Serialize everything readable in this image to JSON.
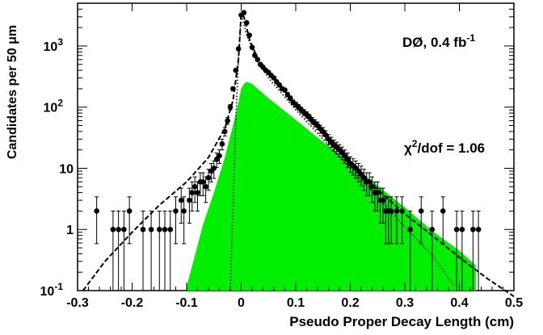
{
  "chart_data": {
    "type": "scatter",
    "xlabel": "Pseudo Proper Decay Length  (cm)",
    "ylabel": "Candidates per 50 μm",
    "xlim": [
      -0.3,
      0.5
    ],
    "ylim": [
      0.1,
      5000
    ],
    "yscale": "log",
    "x_ticks": [
      {
        "v": -0.3,
        "label": "-0.3"
      },
      {
        "v": -0.2,
        "label": "-0.2"
      },
      {
        "v": -0.1,
        "label": "-0.1"
      },
      {
        "v": 0.0,
        "label": "0"
      },
      {
        "v": 0.1,
        "label": "0.1"
      },
      {
        "v": 0.2,
        "label": "0.2"
      },
      {
        "v": 0.3,
        "label": "0.3"
      },
      {
        "v": 0.4,
        "label": "0.4"
      },
      {
        "v": 0.5,
        "label": "0.5"
      }
    ],
    "y_ticks": [
      {
        "v": 0.1,
        "base": "10",
        "exp": "-1"
      },
      {
        "v": 1,
        "base": "1",
        "exp": ""
      },
      {
        "v": 10,
        "base": "10",
        "exp": ""
      },
      {
        "v": 100,
        "base": "10",
        "exp": "2"
      },
      {
        "v": 1000,
        "base": "10",
        "exp": "3"
      }
    ],
    "annotations": {
      "experiment": {
        "text": "DØ,  0.4 fb",
        "sup": "-1"
      },
      "chi2": {
        "pre": "χ",
        "sup": "2",
        "post": "/dof = 1.06"
      }
    },
    "colors": {
      "signal_fill": "#00ee00",
      "data": "#000000"
    },
    "series": [
      {
        "style": "points-with-error-bars",
        "points": [
          [
            -0.265,
            2
          ],
          [
            -0.235,
            1
          ],
          [
            -0.225,
            1
          ],
          [
            -0.215,
            1
          ],
          [
            -0.205,
            2
          ],
          [
            -0.18,
            1
          ],
          [
            -0.165,
            1
          ],
          [
            -0.15,
            1
          ],
          [
            -0.14,
            1
          ],
          [
            -0.13,
            1
          ],
          [
            -0.12,
            2
          ],
          [
            -0.11,
            3
          ],
          [
            -0.105,
            2
          ],
          [
            -0.095,
            3
          ],
          [
            -0.09,
            4
          ],
          [
            -0.085,
            5
          ],
          [
            -0.08,
            4
          ],
          [
            -0.075,
            6
          ],
          [
            -0.07,
            6
          ],
          [
            -0.065,
            5
          ],
          [
            -0.06,
            7
          ],
          [
            -0.055,
            9
          ],
          [
            -0.05,
            10
          ],
          [
            -0.045,
            14
          ],
          [
            -0.04,
            16
          ],
          [
            -0.035,
            25
          ],
          [
            -0.03,
            40
          ],
          [
            -0.025,
            60
          ],
          [
            -0.02,
            100
          ],
          [
            -0.015,
            200
          ],
          [
            -0.01,
            400
          ],
          [
            -0.005,
            900
          ],
          [
            0.0,
            3200
          ],
          [
            0.005,
            3500
          ],
          [
            0.01,
            2400
          ],
          [
            0.015,
            1500
          ],
          [
            0.02,
            950
          ],
          [
            0.025,
            700
          ],
          [
            0.03,
            600
          ],
          [
            0.035,
            500
          ],
          [
            0.04,
            450
          ],
          [
            0.045,
            400
          ],
          [
            0.05,
            370
          ],
          [
            0.055,
            330
          ],
          [
            0.06,
            300
          ],
          [
            0.065,
            260
          ],
          [
            0.07,
            230
          ],
          [
            0.075,
            200
          ],
          [
            0.08,
            190
          ],
          [
            0.085,
            160
          ],
          [
            0.09,
            140
          ],
          [
            0.095,
            120
          ],
          [
            0.1,
            110
          ],
          [
            0.105,
            100
          ],
          [
            0.11,
            90
          ],
          [
            0.115,
            82
          ],
          [
            0.12,
            75
          ],
          [
            0.125,
            68
          ],
          [
            0.13,
            60
          ],
          [
            0.135,
            55
          ],
          [
            0.14,
            50
          ],
          [
            0.145,
            44
          ],
          [
            0.15,
            40
          ],
          [
            0.155,
            35
          ],
          [
            0.16,
            30
          ],
          [
            0.165,
            27
          ],
          [
            0.17,
            24
          ],
          [
            0.175,
            22
          ],
          [
            0.18,
            20
          ],
          [
            0.185,
            18
          ],
          [
            0.19,
            16
          ],
          [
            0.195,
            14
          ],
          [
            0.2,
            12
          ],
          [
            0.205,
            11
          ],
          [
            0.21,
            10
          ],
          [
            0.215,
            9
          ],
          [
            0.22,
            8
          ],
          [
            0.225,
            7
          ],
          [
            0.23,
            6
          ],
          [
            0.235,
            6
          ],
          [
            0.24,
            5
          ],
          [
            0.245,
            4
          ],
          [
            0.25,
            4
          ],
          [
            0.255,
            3
          ],
          [
            0.26,
            3
          ],
          [
            0.265,
            2
          ],
          [
            0.27,
            2
          ],
          [
            0.275,
            2
          ],
          [
            0.285,
            2
          ],
          [
            0.295,
            2
          ],
          [
            0.31,
            1
          ],
          [
            0.33,
            2
          ],
          [
            0.35,
            1
          ],
          [
            0.37,
            2
          ],
          [
            0.395,
            1
          ],
          [
            0.405,
            1
          ],
          [
            0.425,
            1
          ],
          [
            0.435,
            1
          ]
        ]
      },
      {
        "style": "dashed-line",
        "points": [
          [
            -0.29,
            0.1
          ],
          [
            -0.25,
            0.3
          ],
          [
            -0.2,
            0.9
          ],
          [
            -0.15,
            2.5
          ],
          [
            -0.1,
            6
          ],
          [
            -0.06,
            15
          ],
          [
            -0.03,
            45
          ],
          [
            -0.015,
            130
          ],
          [
            -0.005,
            600
          ],
          [
            0.0,
            3300
          ],
          [
            0.005,
            3000
          ],
          [
            0.015,
            1300
          ],
          [
            0.03,
            620
          ],
          [
            0.05,
            380
          ],
          [
            0.1,
            115
          ],
          [
            0.15,
            40
          ],
          [
            0.2,
            13
          ],
          [
            0.25,
            4.5
          ],
          [
            0.3,
            1.8
          ],
          [
            0.35,
            0.8
          ],
          [
            0.4,
            0.35
          ],
          [
            0.45,
            0.16
          ],
          [
            0.5,
            0.08
          ]
        ]
      },
      {
        "style": "dotted-line",
        "points": [
          [
            -0.02,
            0.1
          ],
          [
            -0.01,
            60
          ],
          [
            -0.005,
            600
          ],
          [
            0.0,
            3300
          ],
          [
            0.01,
            1500
          ],
          [
            0.03,
            550
          ],
          [
            0.05,
            300
          ],
          [
            0.1,
            90
          ],
          [
            0.15,
            30
          ],
          [
            0.2,
            10
          ],
          [
            0.25,
            3.4
          ],
          [
            0.3,
            1.1
          ],
          [
            0.35,
            0.38
          ],
          [
            0.39,
            0.12
          ]
        ]
      },
      {
        "style": "filled-area",
        "points": [
          [
            -0.102,
            0.1
          ],
          [
            -0.09,
            0.25
          ],
          [
            -0.07,
            1.2
          ],
          [
            -0.05,
            4
          ],
          [
            -0.03,
            15
          ],
          [
            -0.015,
            50
          ],
          [
            -0.005,
            120
          ],
          [
            0.0,
            200
          ],
          [
            0.005,
            240
          ],
          [
            0.01,
            260
          ],
          [
            0.02,
            240
          ],
          [
            0.05,
            140
          ],
          [
            0.1,
            62
          ],
          [
            0.15,
            27
          ],
          [
            0.2,
            12
          ],
          [
            0.25,
            5.2
          ],
          [
            0.3,
            2.3
          ],
          [
            0.35,
            0.95
          ],
          [
            0.4,
            0.45
          ],
          [
            0.43,
            0.26
          ],
          [
            0.43,
            0.1
          ]
        ]
      }
    ]
  }
}
